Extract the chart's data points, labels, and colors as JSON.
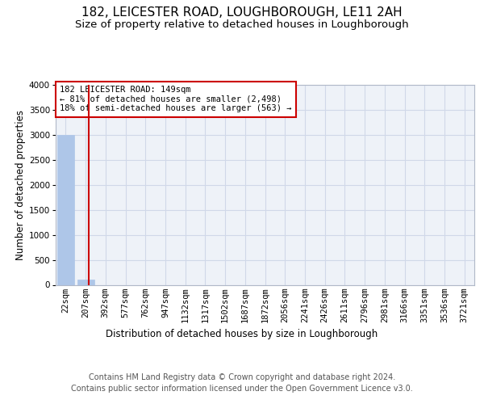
{
  "title": "182, LEICESTER ROAD, LOUGHBOROUGH, LE11 2AH",
  "subtitle": "Size of property relative to detached houses in Loughborough",
  "xlabel": "Distribution of detached houses by size in Loughborough",
  "ylabel": "Number of detached properties",
  "footer_line1": "Contains HM Land Registry data © Crown copyright and database right 2024.",
  "footer_line2": "Contains public sector information licensed under the Open Government Licence v3.0.",
  "bar_labels": [
    "22sqm",
    "207sqm",
    "392sqm",
    "577sqm",
    "762sqm",
    "947sqm",
    "1132sqm",
    "1317sqm",
    "1502sqm",
    "1687sqm",
    "1872sqm",
    "2056sqm",
    "2241sqm",
    "2426sqm",
    "2611sqm",
    "2796sqm",
    "2981sqm",
    "3166sqm",
    "3351sqm",
    "3536sqm",
    "3721sqm"
  ],
  "bar_values": [
    3000,
    110,
    0,
    0,
    0,
    0,
    0,
    0,
    0,
    0,
    0,
    0,
    0,
    0,
    0,
    0,
    0,
    0,
    0,
    0,
    0
  ],
  "bar_color": "#aec6e8",
  "bar_edge_color": "#aec6e8",
  "grid_color": "#d0d8e8",
  "background_color": "#eef2f8",
  "ylim": [
    0,
    4000
  ],
  "yticks": [
    0,
    500,
    1000,
    1500,
    2000,
    2500,
    3000,
    3500,
    4000
  ],
  "red_line_x": 1.15,
  "red_line_color": "#cc0000",
  "annotation_text": "182 LEICESTER ROAD: 149sqm\n← 81% of detached houses are smaller (2,498)\n18% of semi-detached houses are larger (563) →",
  "annotation_box_color": "#ffffff",
  "annotation_box_edge": "#cc0000",
  "title_fontsize": 11,
  "subtitle_fontsize": 9.5,
  "axis_label_fontsize": 8.5,
  "tick_fontsize": 7.5,
  "annotation_fontsize": 7.5,
  "footer_fontsize": 7.0
}
